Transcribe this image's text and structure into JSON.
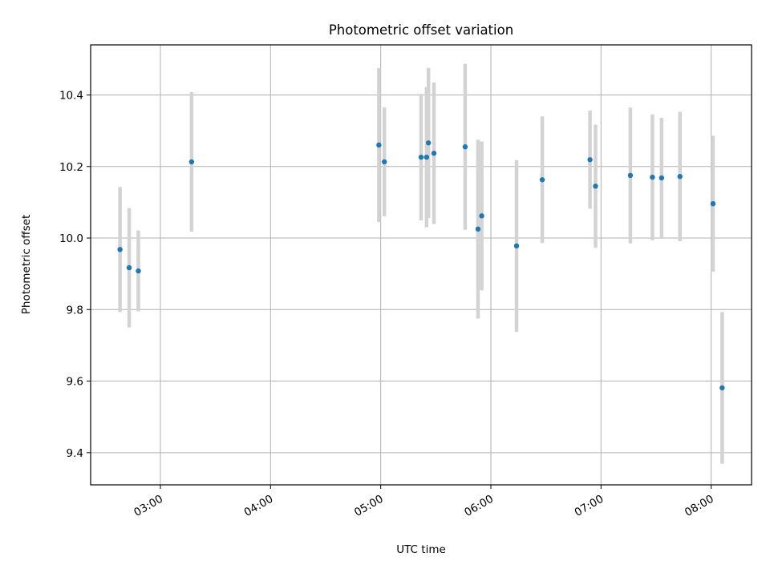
{
  "chart_data": {
    "type": "scatter",
    "title": "Photometric offset variation",
    "xlabel": "UTC time",
    "ylabel": "Photometric offset",
    "x_axis": "time",
    "xlim": [
      "02:22",
      "08:22"
    ],
    "ylim": [
      9.31,
      10.54
    ],
    "grid": true,
    "colors": {
      "point": "#1f77b4",
      "errorbar": "#d3d3d3",
      "grid": "#b0b0b0"
    },
    "x_ticks": [
      "03:00",
      "04:00",
      "05:00",
      "06:00",
      "07:00",
      "08:00"
    ],
    "y_ticks": [
      "9.4",
      "9.6",
      "9.8",
      "10.0",
      "10.2",
      "10.4"
    ],
    "series": [
      {
        "points": [
          {
            "t": "02:38",
            "y": 9.968,
            "err": 0.175
          },
          {
            "t": "02:43",
            "y": 9.917,
            "err": 0.167
          },
          {
            "t": "02:48",
            "y": 9.908,
            "err": 0.113
          },
          {
            "t": "03:17",
            "y": 10.213,
            "err": 0.195
          },
          {
            "t": "04:59",
            "y": 10.26,
            "err": 0.215
          },
          {
            "t": "05:02",
            "y": 10.213,
            "err": 0.152
          },
          {
            "t": "05:22",
            "y": 10.226,
            "err": 0.177
          },
          {
            "t": "05:25",
            "y": 10.226,
            "err": 0.196
          },
          {
            "t": "05:26",
            "y": 10.266,
            "err": 0.21
          },
          {
            "t": "05:29",
            "y": 10.237,
            "err": 0.198
          },
          {
            "t": "05:46",
            "y": 10.255,
            "err": 0.232
          },
          {
            "t": "05:53",
            "y": 10.025,
            "err": 0.25
          },
          {
            "t": "05:55",
            "y": 10.062,
            "err": 0.208
          },
          {
            "t": "06:14",
            "y": 9.978,
            "err": 0.24
          },
          {
            "t": "06:28",
            "y": 10.163,
            "err": 0.177
          },
          {
            "t": "06:54",
            "y": 10.219,
            "err": 0.137
          },
          {
            "t": "06:57",
            "y": 10.145,
            "err": 0.172
          },
          {
            "t": "07:16",
            "y": 10.175,
            "err": 0.19
          },
          {
            "t": "07:28",
            "y": 10.17,
            "err": 0.176
          },
          {
            "t": "07:33",
            "y": 10.168,
            "err": 0.168
          },
          {
            "t": "07:43",
            "y": 10.172,
            "err": 0.181
          },
          {
            "t": "08:01",
            "y": 10.096,
            "err": 0.19
          },
          {
            "t": "08:06",
            "y": 9.581,
            "err": 0.212
          }
        ]
      }
    ]
  }
}
